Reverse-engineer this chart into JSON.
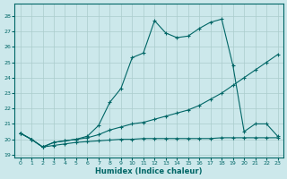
{
  "title": "",
  "xlabel": "Humidex (Indice chaleur)",
  "bg_color": "#cce8eb",
  "grid_color": "#aacccc",
  "line_color": "#006666",
  "xlim": [
    -0.5,
    23.5
  ],
  "ylim": [
    18.8,
    28.8
  ],
  "yticks": [
    19,
    20,
    21,
    22,
    23,
    24,
    25,
    26,
    27,
    28
  ],
  "xticks": [
    0,
    1,
    2,
    3,
    4,
    5,
    6,
    7,
    8,
    9,
    10,
    11,
    12,
    13,
    14,
    15,
    16,
    17,
    18,
    19,
    20,
    21,
    22,
    23
  ],
  "series": [
    {
      "x": [
        0,
        1,
        2,
        3,
        4,
        5,
        6,
        7,
        8,
        9,
        10,
        11,
        12,
        13,
        14,
        15,
        16,
        17,
        18,
        19,
        20,
        21,
        22,
        23
      ],
      "y": [
        20.4,
        20.0,
        19.5,
        19.8,
        19.9,
        20.0,
        20.2,
        20.9,
        22.4,
        23.3,
        25.3,
        25.6,
        27.7,
        26.9,
        26.6,
        26.7,
        27.2,
        27.6,
        27.8,
        24.8,
        20.5,
        21.0,
        21.0,
        20.2
      ]
    },
    {
      "x": [
        0,
        1,
        2,
        3,
        4,
        5,
        6,
        7,
        8,
        9,
        10,
        11,
        12,
        13,
        14,
        15,
        16,
        17,
        18,
        19,
        20,
        21,
        22,
        23
      ],
      "y": [
        20.4,
        20.0,
        19.5,
        19.8,
        19.9,
        20.0,
        20.1,
        20.3,
        20.6,
        20.8,
        21.0,
        21.1,
        21.3,
        21.5,
        21.7,
        21.9,
        22.2,
        22.6,
        23.0,
        23.5,
        24.0,
        24.5,
        25.0,
        25.5
      ]
    },
    {
      "x": [
        0,
        1,
        2,
        3,
        4,
        5,
        6,
        7,
        8,
        9,
        10,
        11,
        12,
        13,
        14,
        15,
        16,
        17,
        18,
        19,
        20,
        21,
        22,
        23
      ],
      "y": [
        20.4,
        20.0,
        19.5,
        19.6,
        19.7,
        19.8,
        19.85,
        19.9,
        19.95,
        20.0,
        20.0,
        20.05,
        20.05,
        20.05,
        20.05,
        20.05,
        20.05,
        20.05,
        20.1,
        20.1,
        20.1,
        20.1,
        20.1,
        20.1
      ]
    }
  ]
}
